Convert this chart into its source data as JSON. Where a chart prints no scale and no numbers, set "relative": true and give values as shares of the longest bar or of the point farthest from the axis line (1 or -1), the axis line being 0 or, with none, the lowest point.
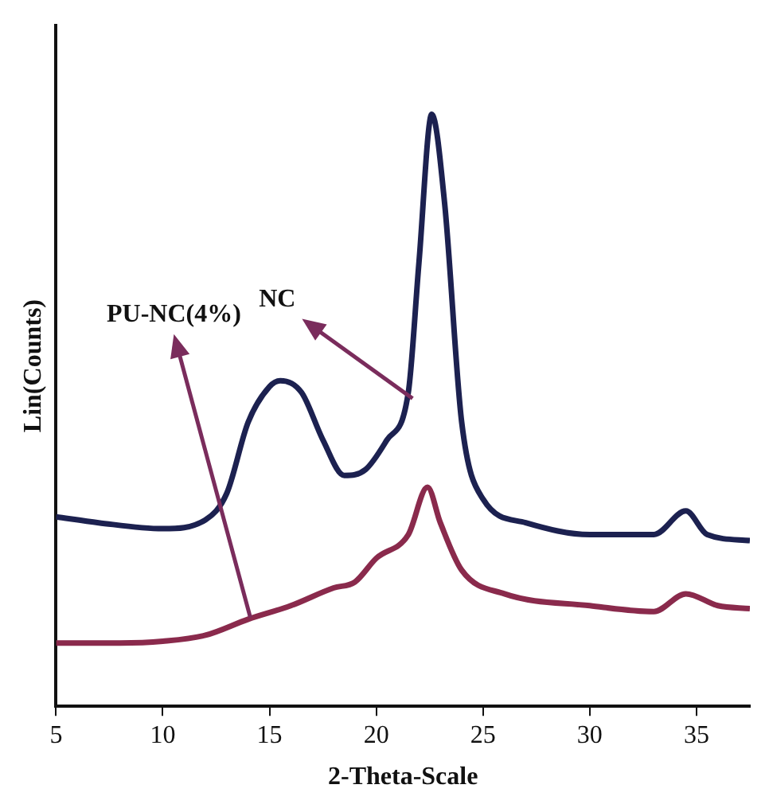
{
  "chart_data": {
    "type": "line",
    "xlabel": "2-Theta-Scale",
    "ylabel": "Lin(Counts)",
    "relative": true,
    "xlim": [
      5,
      37.5
    ],
    "xticks": [
      5,
      10,
      15,
      20,
      25,
      30,
      35
    ],
    "grid": false,
    "legend": false,
    "marker": "none",
    "line_style": "solid",
    "series": [
      {
        "color": "#1c2150",
        "x": [
          5,
          7,
          10,
          12,
          13,
          14,
          15,
          15.5,
          16.5,
          17.5,
          18.5,
          19.5,
          20.5,
          21.5,
          22,
          22.6,
          23.2,
          24,
          25,
          27,
          30,
          33,
          34.5,
          35.5,
          37.5
        ],
        "values": [
          0.32,
          0.31,
          0.3,
          0.315,
          0.36,
          0.48,
          0.54,
          0.55,
          0.53,
          0.45,
          0.39,
          0.4,
          0.45,
          0.53,
          0.75,
          1.0,
          0.85,
          0.48,
          0.35,
          0.31,
          0.29,
          0.29,
          0.33,
          0.29,
          0.28
        ]
      },
      {
        "color": "#8a2a4c",
        "x": [
          5,
          8,
          10,
          12,
          14,
          16,
          18,
          19,
          20,
          21.5,
          22.4,
          23,
          24,
          26,
          30,
          33,
          34.5,
          36,
          37.5
        ],
        "values": [
          0.107,
          0.107,
          0.11,
          0.12,
          0.147,
          0.17,
          0.2,
          0.21,
          0.25,
          0.29,
          0.37,
          0.31,
          0.23,
          0.19,
          0.17,
          0.16,
          0.19,
          0.17,
          0.165
        ]
      }
    ],
    "annotations": [
      {
        "text": "NC",
        "x": 21.7,
        "y": 0.52
      },
      {
        "text": "PU-NC(4%)",
        "x": 14.1,
        "y": 0.15
      }
    ]
  }
}
